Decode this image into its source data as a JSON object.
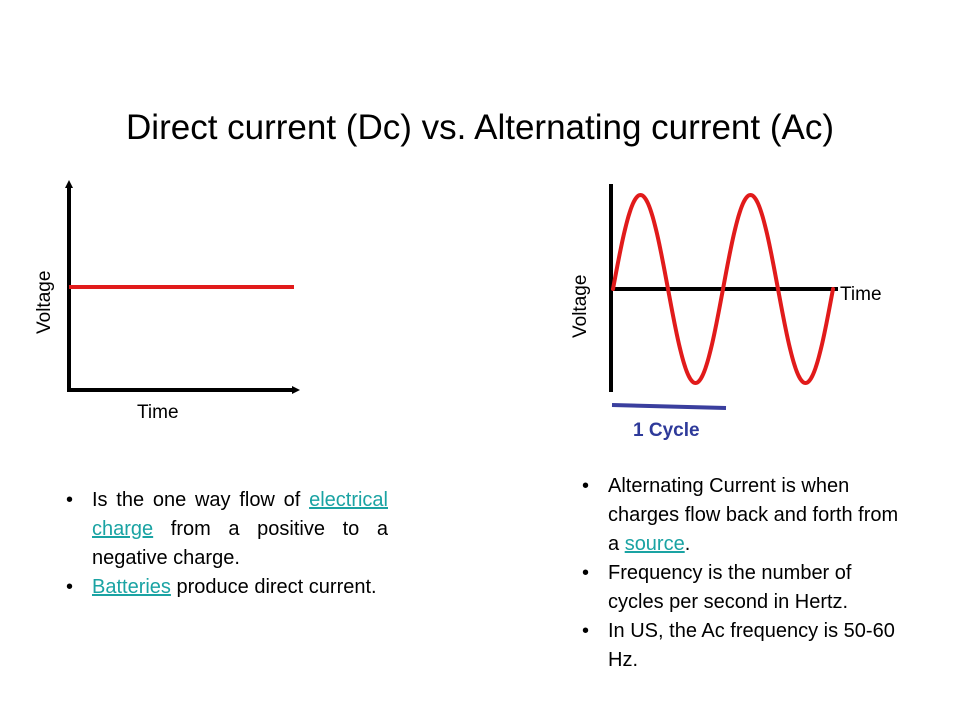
{
  "title": "Direct current (Dc) vs. Alternating current (Ac)",
  "dc_graph": {
    "y_label": "Voltage",
    "x_label": "Time"
  },
  "ac_graph": {
    "y_label": "Voltage",
    "x_label": "Time",
    "cycle_label": "1 Cycle"
  },
  "dc_bullets": [
    {
      "before": "Is the one way flow of ",
      "link": "electrical charge",
      "after": " from a positive to a negative charge."
    },
    {
      "before": "",
      "link": "Batteries",
      "after": " produce direct current."
    }
  ],
  "ac_bullets": [
    {
      "before": "Alternating Current is when charges flow back and forth from a ",
      "link": "source",
      "after": "."
    },
    {
      "before": "Frequency is the number of cycles per second in Hertz.",
      "link": "",
      "after": ""
    },
    {
      "before": "In US, the Ac frequency is 50-60 Hz.",
      "link": "",
      "after": ""
    }
  ],
  "colors": {
    "signal": "#e11b1b",
    "axis": "#000000",
    "cycle_bar": "#3a3f9e",
    "link": "#1aa3a3"
  }
}
